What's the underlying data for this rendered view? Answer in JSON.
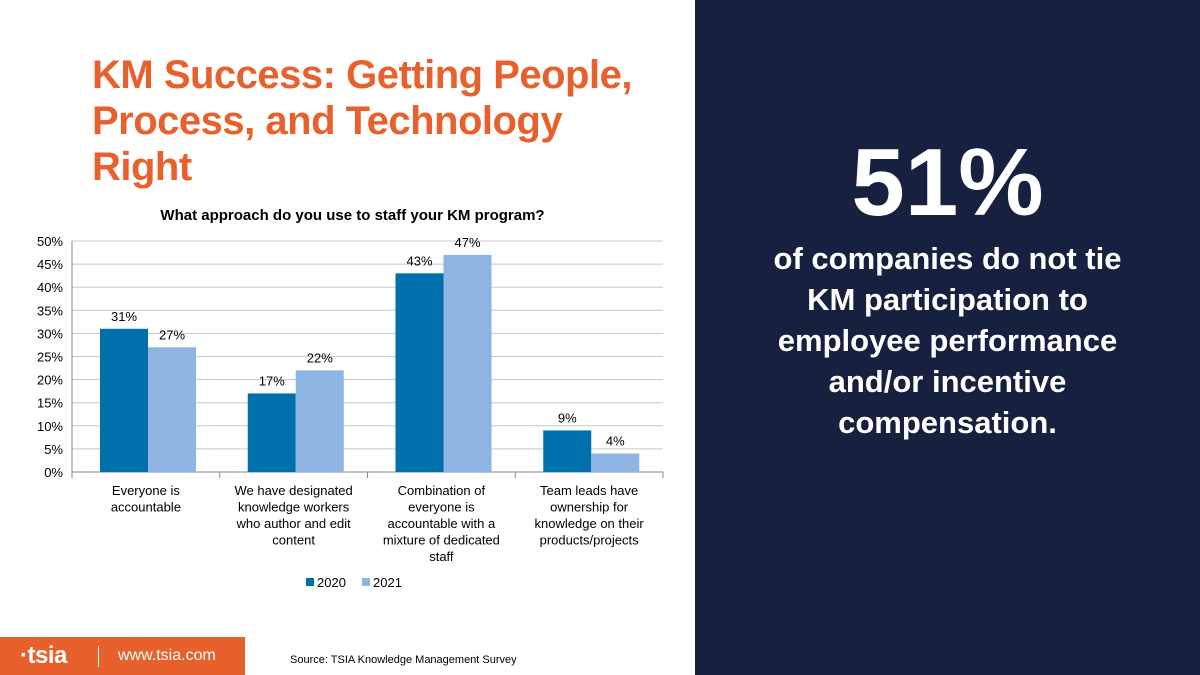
{
  "slide": {
    "title_lines": [
      "KM Success: Getting People,",
      "Process, and Technology Right"
    ],
    "stat_value": "51%",
    "stat_lines": [
      "of companies do not tie",
      "KM participation to",
      "employee performance",
      "and/or incentive",
      "compensation."
    ],
    "logo": "·tsia",
    "url": "www.tsia.com",
    "source": "Source: TSIA Knowledge Management Survey",
    "colors": {
      "accent": "#e8612c",
      "panel": "#17203f",
      "series_2020": "#0070ad",
      "series_2021": "#8db4e2"
    }
  },
  "chart_data": {
    "type": "bar",
    "title": "What approach do you use to staff your KM program?",
    "categories": [
      [
        "Everyone is",
        "accountable"
      ],
      [
        "We have designated",
        "knowledge workers",
        "who author and edit",
        "content"
      ],
      [
        "Combination of",
        "everyone is",
        "accountable with a",
        "mixture of dedicated",
        "staff"
      ],
      [
        "Team leads have",
        "ownership for",
        "knowledge on their",
        "products/projects"
      ]
    ],
    "series": [
      {
        "name": "2020",
        "values": [
          31,
          17,
          43,
          9
        ],
        "labels": [
          "31%",
          "17%",
          "43%",
          "9%"
        ]
      },
      {
        "name": "2021",
        "values": [
          27,
          22,
          47,
          4
        ],
        "labels": [
          "27%",
          "22%",
          "47%",
          "4%"
        ]
      }
    ],
    "ylim": [
      0,
      50
    ],
    "yticks": [
      "0%",
      "5%",
      "10%",
      "15%",
      "20%",
      "25%",
      "30%",
      "35%",
      "40%",
      "45%",
      "50%"
    ],
    "grid": true,
    "legend": "bottom"
  }
}
